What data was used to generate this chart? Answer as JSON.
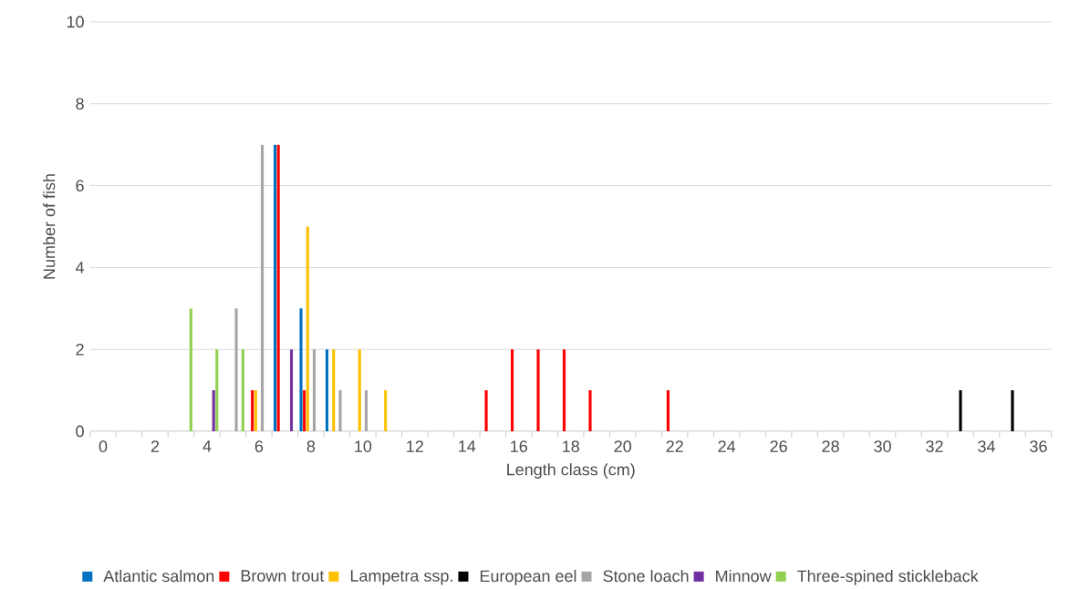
{
  "chart_data": {
    "type": "bar",
    "xlabel": "Length class (cm)",
    "ylabel": "Number of fish",
    "categories": [
      "0",
      null,
      "2",
      null,
      "4",
      null,
      "6",
      null,
      "8",
      null,
      "10",
      null,
      "12",
      null,
      "14",
      null,
      "16",
      null,
      "18",
      null,
      "20",
      null,
      "22",
      null,
      "24",
      null,
      "26",
      null,
      "28",
      null,
      "30",
      null,
      "32",
      null,
      "34",
      null,
      "36"
    ],
    "series": [
      {
        "name": "Atlantic salmon",
        "color": "#0070c0",
        "values": [
          null,
          null,
          null,
          null,
          null,
          null,
          null,
          7,
          3,
          2,
          null,
          null,
          null,
          null,
          null,
          null,
          null,
          null,
          null,
          null,
          null,
          null,
          null,
          null,
          null,
          null,
          null,
          null,
          null,
          null,
          null,
          null,
          null,
          null,
          null,
          null,
          null
        ]
      },
      {
        "name": "Brown trout",
        "color": "#ff0000",
        "values": [
          null,
          null,
          null,
          null,
          null,
          null,
          1,
          7,
          1,
          null,
          null,
          null,
          null,
          null,
          null,
          1,
          2,
          2,
          2,
          1,
          null,
          null,
          1,
          null,
          null,
          null,
          null,
          null,
          null,
          null,
          null,
          null,
          null,
          null,
          null,
          null,
          null
        ]
      },
      {
        "name": "Lampetra ssp.",
        "color": "#ffc000",
        "values": [
          null,
          null,
          null,
          null,
          null,
          null,
          1,
          null,
          5,
          2,
          2,
          1,
          null,
          null,
          null,
          null,
          null,
          null,
          null,
          null,
          null,
          null,
          null,
          null,
          null,
          null,
          null,
          null,
          null,
          null,
          null,
          null,
          null,
          null,
          null,
          null,
          null
        ]
      },
      {
        "name": "European eel",
        "color": "#000000",
        "values": [
          null,
          null,
          null,
          null,
          null,
          null,
          null,
          null,
          null,
          null,
          null,
          null,
          null,
          null,
          null,
          null,
          null,
          null,
          null,
          null,
          null,
          null,
          null,
          null,
          null,
          null,
          null,
          null,
          null,
          null,
          null,
          null,
          null,
          1,
          null,
          1,
          null
        ]
      },
      {
        "name": "Stone loach",
        "color": "#a5a5a5",
        "values": [
          null,
          null,
          null,
          null,
          null,
          3,
          7,
          null,
          2,
          1,
          1,
          null,
          null,
          null,
          null,
          null,
          null,
          null,
          null,
          null,
          null,
          null,
          null,
          null,
          null,
          null,
          null,
          null,
          null,
          null,
          null,
          null,
          null,
          null,
          null,
          null,
          null
        ]
      },
      {
        "name": "Minnow",
        "color": "#7030a0",
        "values": [
          null,
          null,
          null,
          null,
          1,
          null,
          null,
          2,
          null,
          null,
          null,
          null,
          null,
          null,
          null,
          null,
          null,
          null,
          null,
          null,
          null,
          null,
          null,
          null,
          null,
          null,
          null,
          null,
          null,
          null,
          null,
          null,
          null,
          null,
          null,
          null,
          null
        ]
      },
      {
        "name": "Three-spined stickleback",
        "color": "#92d050",
        "values": [
          null,
          null,
          null,
          3,
          2,
          2,
          null,
          null,
          null,
          null,
          null,
          null,
          null,
          null,
          null,
          null,
          null,
          null,
          null,
          null,
          null,
          null,
          null,
          null,
          null,
          null,
          null,
          null,
          null,
          null,
          null,
          null,
          null,
          null,
          null,
          null,
          null
        ]
      }
    ],
    "ylim": [
      0,
      10
    ],
    "yticks": [
      0,
      2,
      4,
      6,
      8,
      10
    ],
    "grid": "y",
    "legend": "bottom"
  }
}
